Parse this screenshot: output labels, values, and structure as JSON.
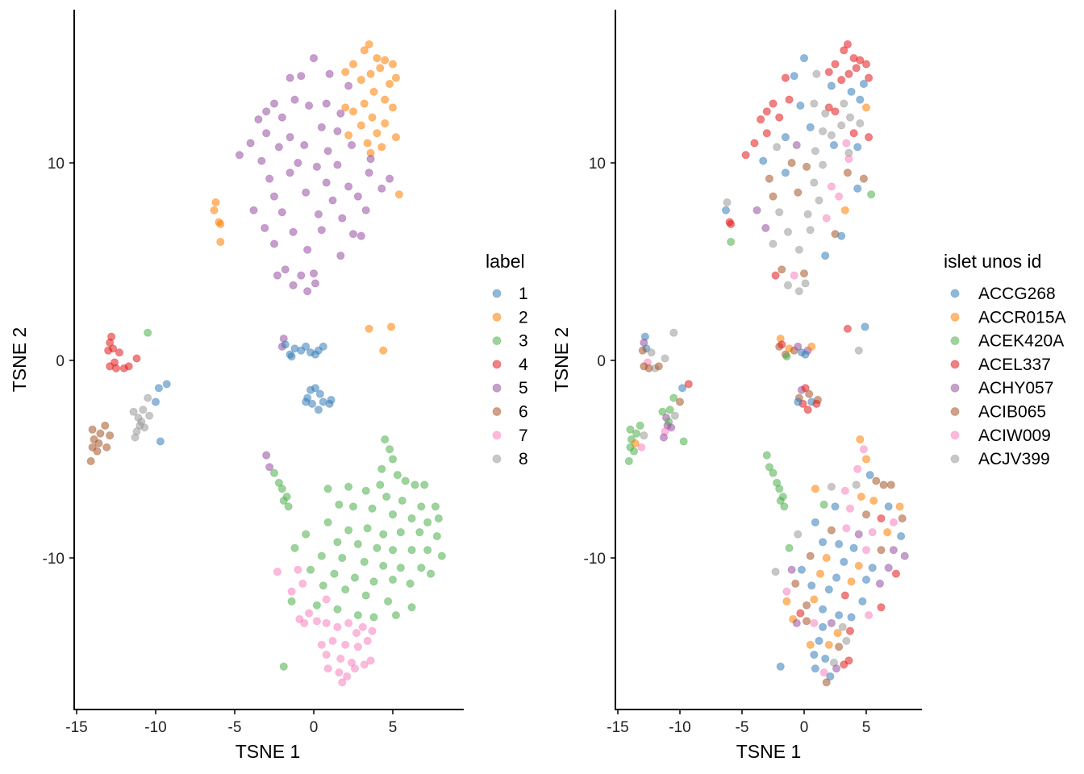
{
  "chart_data": [
    {
      "type": "scatter",
      "title": "",
      "xlabel": "TSNE 1",
      "ylabel": "TSNE 2",
      "xlim": [
        -15.1,
        9.6
      ],
      "ylim": [
        -17.7,
        17.7
      ],
      "xticks": [
        "-15",
        "-10",
        "-5",
        "0",
        "5"
      ],
      "xtick_values": [
        -15,
        -10,
        -5,
        0,
        5
      ],
      "yticks": [
        "10",
        "0",
        "-10"
      ],
      "ytick_values": [
        10,
        0,
        -10
      ],
      "color_by": "label",
      "legend_title": "label",
      "legend_position": "right",
      "grid": false
    },
    {
      "type": "scatter",
      "title": "",
      "xlabel": "TSNE 1",
      "ylabel": "TSNE 2",
      "xlim": [
        -15.2,
        9.4
      ],
      "ylim": [
        -17.7,
        17.7
      ],
      "xticks": [
        "-15",
        "-10",
        "-5",
        "0",
        "5"
      ],
      "xtick_values": [
        -15,
        -10,
        -5,
        0,
        5
      ],
      "yticks": [
        "10",
        "0",
        "-10"
      ],
      "ytick_values": [
        10,
        0,
        -10
      ],
      "color_by": "islet unos id",
      "legend_title": "islet unos id",
      "legend_position": "right",
      "grid": false
    }
  ],
  "labels": [
    "1",
    "2",
    "3",
    "4",
    "5",
    "6",
    "7",
    "8"
  ],
  "label_colors": [
    "#377EB8",
    "#FF7F00",
    "#4DAF4A",
    "#E41A1C",
    "#984EA3",
    "#A65628",
    "#F781BF",
    "#999999"
  ],
  "donors": [
    "ACCG268",
    "ACCR015A",
    "ACEK420A",
    "ACEL337",
    "ACHY057",
    "ACIB065",
    "ACIW009",
    "ACJV399"
  ],
  "donor_colors": [
    "#377EB8",
    "#FF7F00",
    "#4DAF4A",
    "#E41A1C",
    "#984EA3",
    "#A65628",
    "#F781BF",
    "#999999"
  ],
  "points_format": [
    "tsne1",
    "tsne2",
    "label_index",
    "donor_index"
  ],
  "points": [
    [
      3.5,
      16,
      1,
      3
    ],
    [
      3.2,
      15.7,
      1,
      3
    ],
    [
      4,
      15.3,
      1,
      3
    ],
    [
      4.5,
      15.2,
      1,
      3
    ],
    [
      5,
      15,
      1,
      3
    ],
    [
      4.2,
      14.8,
      1,
      3
    ],
    [
      2.5,
      15,
      1,
      3
    ],
    [
      3.6,
      14.5,
      1,
      3
    ],
    [
      5.2,
      14.3,
      1,
      3
    ],
    [
      4.8,
      14,
      1,
      0
    ],
    [
      3,
      14.2,
      1,
      3
    ],
    [
      2,
      14.6,
      1,
      3
    ],
    [
      3.8,
      13.6,
      1,
      0
    ],
    [
      4.5,
      13.2,
      1,
      0
    ],
    [
      3.2,
      13,
      1,
      7
    ],
    [
      5,
      12.8,
      1,
      1
    ],
    [
      2.5,
      12.6,
      1,
      3
    ],
    [
      3.7,
      12.3,
      1,
      7
    ],
    [
      4.5,
      12,
      1,
      7
    ],
    [
      2,
      12.8,
      1,
      3
    ],
    [
      3,
      11.9,
      1,
      7
    ],
    [
      4,
      11.5,
      1,
      3
    ],
    [
      5.2,
      11.3,
      1,
      3
    ],
    [
      3.4,
      11,
      1,
      6
    ],
    [
      2.2,
      11.4,
      1,
      7
    ],
    [
      4.3,
      10.8,
      1,
      0
    ],
    [
      3.6,
      10.5,
      1,
      7
    ],
    [
      5.4,
      8.4,
      1,
      2
    ],
    [
      -6.2,
      8,
      1,
      7
    ],
    [
      -6.3,
      7.6,
      1,
      0
    ],
    [
      -6,
      7,
      1,
      3
    ],
    [
      -5.9,
      6.9,
      1,
      3
    ],
    [
      -5.9,
      6,
      1,
      2
    ],
    [
      3.5,
      1.6,
      1,
      3
    ],
    [
      4.9,
      1.7,
      1,
      0
    ],
    [
      4.4,
      0.5,
      1,
      7
    ],
    [
      0,
      15.3,
      4,
      0
    ],
    [
      -1.5,
      14.3,
      4,
      3
    ],
    [
      -0.8,
      14.4,
      4,
      0
    ],
    [
      1,
      14.5,
      4,
      7
    ],
    [
      2.2,
      13.9,
      4,
      0
    ],
    [
      -1.2,
      13.2,
      4,
      3
    ],
    [
      -2.5,
      13,
      4,
      3
    ],
    [
      -0.3,
      12.9,
      4,
      0
    ],
    [
      0.8,
      13,
      4,
      7
    ],
    [
      1.7,
      12.5,
      4,
      7
    ],
    [
      -3,
      12.6,
      4,
      3
    ],
    [
      -3.5,
      12.2,
      4,
      3
    ],
    [
      -2,
      12.3,
      4,
      3
    ],
    [
      0.5,
      11.8,
      4,
      0
    ],
    [
      1.5,
      11.6,
      4,
      7
    ],
    [
      -1.5,
      11.3,
      4,
      0
    ],
    [
      -3,
      11.5,
      4,
      3
    ],
    [
      -4,
      11,
      4,
      3
    ],
    [
      -2.2,
      10.8,
      4,
      7
    ],
    [
      -0.6,
      10.9,
      4,
      4
    ],
    [
      0.9,
      10.6,
      4,
      7
    ],
    [
      2.4,
      10.9,
      4,
      0
    ],
    [
      3.6,
      10.2,
      4,
      6
    ],
    [
      -4.7,
      10.4,
      4,
      3
    ],
    [
      -3.3,
      10.1,
      4,
      0
    ],
    [
      -1,
      10,
      4,
      5
    ],
    [
      0.2,
      9.8,
      4,
      5
    ],
    [
      1.5,
      9.9,
      4,
      7
    ],
    [
      4.8,
      9.2,
      4,
      5
    ],
    [
      -2.8,
      9.2,
      4,
      5
    ],
    [
      -1.5,
      9.5,
      4,
      0
    ],
    [
      0.8,
      9,
      4,
      7
    ],
    [
      2.2,
      8.8,
      4,
      6
    ],
    [
      3.5,
      9.5,
      4,
      5
    ],
    [
      -2.5,
      8.3,
      4,
      5
    ],
    [
      -0.5,
      8.5,
      4,
      5
    ],
    [
      1.2,
      8.1,
      4,
      7
    ],
    [
      2.8,
      8.3,
      4,
      6
    ],
    [
      4.3,
      8.7,
      4,
      0
    ],
    [
      -3.8,
      7.6,
      4,
      4
    ],
    [
      -2,
      7.5,
      4,
      7
    ],
    [
      0.3,
      7.4,
      4,
      7
    ],
    [
      1.8,
      7.2,
      4,
      6
    ],
    [
      3.3,
      7.6,
      4,
      1
    ],
    [
      -3.1,
      6.7,
      4,
      4
    ],
    [
      -1.3,
      6.5,
      4,
      7
    ],
    [
      0.5,
      6.6,
      4,
      7
    ],
    [
      2.5,
      6.4,
      4,
      5
    ],
    [
      -2.5,
      5.9,
      4,
      7
    ],
    [
      -0.4,
      5.6,
      4,
      7
    ],
    [
      1.7,
      5.3,
      4,
      0
    ],
    [
      3,
      6.3,
      4,
      0
    ],
    [
      -1.8,
      4.6,
      4,
      5
    ],
    [
      0,
      4.4,
      4,
      5
    ],
    [
      -0.8,
      4.3,
      4,
      6
    ],
    [
      -0.4,
      3.5,
      4,
      7
    ],
    [
      -1.3,
      3.8,
      4,
      7
    ],
    [
      0.1,
      3.9,
      4,
      7
    ],
    [
      -2.3,
      4.3,
      4,
      3
    ],
    [
      -1.9,
      1.1,
      4,
      1
    ],
    [
      -2,
      0.7,
      4,
      5
    ],
    [
      -3,
      -4.8,
      4,
      2
    ],
    [
      -2.8,
      -5.4,
      4,
      2
    ],
    [
      -12.8,
      1.2,
      3,
      0
    ],
    [
      -12.9,
      0.9,
      3,
      4
    ],
    [
      -12.7,
      0.6,
      3,
      0
    ],
    [
      -13,
      0.5,
      3,
      5
    ],
    [
      -12.3,
      0.4,
      3,
      7
    ],
    [
      -12.6,
      -0.1,
      3,
      6
    ],
    [
      -12.9,
      -0.3,
      3,
      5
    ],
    [
      -12,
      -0.4,
      3,
      7
    ],
    [
      -11.7,
      -0.3,
      3,
      5
    ],
    [
      -11.2,
      0.1,
      3,
      7
    ],
    [
      -12.5,
      -0.4,
      3,
      5
    ],
    [
      -14,
      -3.5,
      5,
      2
    ],
    [
      -13.5,
      -3.7,
      5,
      2
    ],
    [
      -13.9,
      -4,
      5,
      2
    ],
    [
      -13.6,
      -4.2,
      5,
      1
    ],
    [
      -13.2,
      -3.3,
      5,
      2
    ],
    [
      -13.1,
      -4.4,
      5,
      6
    ],
    [
      -14,
      -4.4,
      5,
      2
    ],
    [
      -13.7,
      -4.6,
      5,
      2
    ],
    [
      -12.9,
      -3.8,
      5,
      7
    ],
    [
      -14.1,
      -5.1,
      5,
      2
    ],
    [
      -11.4,
      -2.6,
      7,
      2
    ],
    [
      -11.1,
      -2.9,
      7,
      4
    ],
    [
      -10.8,
      -2.5,
      7,
      2
    ],
    [
      -11,
      -3.3,
      7,
      4
    ],
    [
      -11.2,
      -3.6,
      7,
      6
    ],
    [
      -10.9,
      -3.1,
      7,
      2
    ],
    [
      -11.3,
      -3.9,
      7,
      4
    ],
    [
      -10.5,
      -1.9,
      7,
      2
    ],
    [
      -10.4,
      -2.8,
      7,
      7
    ],
    [
      -10.7,
      -3.4,
      7,
      4
    ],
    [
      -1.8,
      0.8,
      0,
      3
    ],
    [
      -1.5,
      0.3,
      0,
      5
    ],
    [
      -1.2,
      0.6,
      0,
      1
    ],
    [
      -0.8,
      0.5,
      0,
      5
    ],
    [
      -0.5,
      0.7,
      0,
      4
    ],
    [
      -0.2,
      0.4,
      0,
      0
    ],
    [
      0.3,
      0.5,
      0,
      4
    ],
    [
      0.6,
      0.7,
      0,
      1
    ],
    [
      0.1,
      0.3,
      0,
      0
    ],
    [
      -1.4,
      0.2,
      0,
      2
    ],
    [
      -0.4,
      -1.9,
      0,
      5
    ],
    [
      -0.2,
      -1.5,
      0,
      4
    ],
    [
      0.1,
      -1.4,
      0,
      3
    ],
    [
      0.4,
      -1.7,
      0,
      5
    ],
    [
      -0.1,
      -2.2,
      0,
      3
    ],
    [
      0.3,
      -2.5,
      0,
      3
    ],
    [
      0.6,
      -2.1,
      0,
      0
    ],
    [
      1.1,
      -2,
      0,
      5
    ],
    [
      1,
      -2.2,
      0,
      3
    ],
    [
      -0.5,
      -2.1,
      0,
      0
    ],
    [
      -10,
      -2.1,
      0,
      5
    ],
    [
      -9.8,
      -1.4,
      0,
      0
    ],
    [
      -9.3,
      -1.2,
      0,
      3
    ],
    [
      -9.7,
      -4.1,
      0,
      2
    ],
    [
      -10.5,
      1.4,
      2,
      7
    ],
    [
      -2.2,
      -6.2,
      2,
      2
    ],
    [
      -2,
      -6.5,
      2,
      2
    ],
    [
      -1.7,
      -6.9,
      2,
      2
    ],
    [
      -1.6,
      -7.4,
      2,
      2
    ],
    [
      -1.9,
      -7.1,
      2,
      2
    ],
    [
      -2.5,
      -5.7,
      2,
      2
    ],
    [
      4.5,
      -4,
      2,
      1
    ],
    [
      4.8,
      -4.5,
      2,
      6
    ],
    [
      5,
      -5,
      2,
      1
    ],
    [
      4.3,
      -5.5,
      2,
      6
    ],
    [
      5.3,
      -5.8,
      2,
      0
    ],
    [
      4.2,
      -6.3,
      2,
      7
    ],
    [
      5.8,
      -6.1,
      2,
      5
    ],
    [
      6.4,
      -6.3,
      2,
      5
    ],
    [
      7,
      -6.3,
      2,
      5
    ],
    [
      3.3,
      -6.6,
      2,
      6
    ],
    [
      2.2,
      -6.4,
      2,
      7
    ],
    [
      0.9,
      -6.5,
      2,
      1
    ],
    [
      4.6,
      -6.9,
      2,
      1
    ],
    [
      5.6,
      -7.1,
      2,
      1
    ],
    [
      6.8,
      -7.4,
      2,
      0
    ],
    [
      7.7,
      -7.4,
      2,
      1
    ],
    [
      2.5,
      -7.4,
      2,
      0
    ],
    [
      3.7,
      -7.5,
      2,
      6
    ],
    [
      1.6,
      -7.3,
      2,
      2
    ],
    [
      5,
      -7.8,
      2,
      5
    ],
    [
      6.2,
      -8,
      2,
      3
    ],
    [
      7.2,
      -8.2,
      2,
      6
    ],
    [
      7.9,
      -8,
      2,
      5
    ],
    [
      0.9,
      -8.2,
      2,
      0
    ],
    [
      2.2,
      -8.6,
      2,
      5
    ],
    [
      3.4,
      -8.5,
      2,
      6
    ],
    [
      4.4,
      -8.8,
      2,
      4
    ],
    [
      5.5,
      -8.7,
      2,
      6
    ],
    [
      6.7,
      -8.7,
      2,
      1
    ],
    [
      7.8,
      -8.9,
      2,
      0
    ],
    [
      -0.5,
      -8.8,
      2,
      7
    ],
    [
      1.5,
      -9.2,
      2,
      0
    ],
    [
      2.8,
      -9.3,
      2,
      0
    ],
    [
      4,
      -9.5,
      2,
      0
    ],
    [
      5,
      -9.6,
      2,
      6
    ],
    [
      6.2,
      -9.6,
      2,
      5
    ],
    [
      7.2,
      -9.6,
      2,
      4
    ],
    [
      -1.2,
      -9.5,
      2,
      2
    ],
    [
      0.5,
      -9.9,
      2,
      5
    ],
    [
      1.8,
      -10,
      2,
      1
    ],
    [
      3.2,
      -10.2,
      2,
      0
    ],
    [
      4.4,
      -10.4,
      2,
      1
    ],
    [
      5.5,
      -10.5,
      2,
      0
    ],
    [
      6.8,
      -10.5,
      2,
      4
    ],
    [
      8.1,
      -9.9,
      2,
      4
    ],
    [
      -0.2,
      -10.6,
      2,
      0
    ],
    [
      1.3,
      -10.8,
      2,
      1
    ],
    [
      2.6,
      -11,
      2,
      0
    ],
    [
      3.8,
      -11.2,
      2,
      1
    ],
    [
      5,
      -11.1,
      2,
      0
    ],
    [
      6.1,
      -11.3,
      2,
      4
    ],
    [
      7.4,
      -10.8,
      2,
      3
    ],
    [
      0.6,
      -11.4,
      2,
      0
    ],
    [
      2,
      -11.6,
      2,
      0
    ],
    [
      3.3,
      -11.9,
      2,
      3
    ],
    [
      4.7,
      -12.2,
      2,
      0
    ],
    [
      6.2,
      -12.5,
      2,
      3
    ],
    [
      -1.4,
      -12.2,
      2,
      1
    ],
    [
      0.2,
      -12.4,
      2,
      5
    ],
    [
      1.5,
      -12.6,
      2,
      0
    ],
    [
      2.8,
      -12.9,
      2,
      0
    ],
    [
      3.8,
      -13,
      2,
      0
    ],
    [
      5.2,
      -12.9,
      2,
      6
    ],
    [
      -1.9,
      -15.5,
      2,
      0
    ],
    [
      -2.3,
      -10.7,
      6,
      7
    ],
    [
      -1,
      -10.6,
      6,
      4
    ],
    [
      -0.7,
      -11.3,
      6,
      5
    ],
    [
      -1.4,
      -11.7,
      6,
      6
    ],
    [
      0.8,
      -12.1,
      6,
      1
    ],
    [
      -0.3,
      -12.8,
      6,
      3
    ],
    [
      0.2,
      -13.2,
      6,
      5
    ],
    [
      -0.9,
      -13.1,
      6,
      1
    ],
    [
      -0.6,
      -13.3,
      6,
      4
    ],
    [
      0.8,
      -13.3,
      6,
      6
    ],
    [
      1.5,
      -13.5,
      6,
      0
    ],
    [
      2.2,
      -13.3,
      6,
      4
    ],
    [
      2.7,
      -13.8,
      6,
      1
    ],
    [
      3.1,
      -13.5,
      6,
      7
    ],
    [
      3.7,
      -13.7,
      6,
      3
    ],
    [
      1.2,
      -14.2,
      6,
      0
    ],
    [
      2,
      -14.4,
      6,
      1
    ],
    [
      2.8,
      -14.5,
      6,
      5
    ],
    [
      3.4,
      -14.2,
      6,
      7
    ],
    [
      0.5,
      -14.4,
      6,
      1
    ],
    [
      0.8,
      -14.9,
      6,
      0
    ],
    [
      1.7,
      -15.1,
      6,
      0
    ],
    [
      2.4,
      -15.3,
      6,
      7
    ],
    [
      3.2,
      -15.4,
      6,
      3
    ],
    [
      3.6,
      -15.2,
      6,
      3
    ],
    [
      0.9,
      -15.6,
      6,
      0
    ],
    [
      1.6,
      -15.8,
      6,
      6
    ],
    [
      2.1,
      -16,
      6,
      0
    ],
    [
      1.8,
      -16.3,
      6,
      5
    ],
    [
      2.6,
      -15.6,
      6,
      4
    ]
  ]
}
